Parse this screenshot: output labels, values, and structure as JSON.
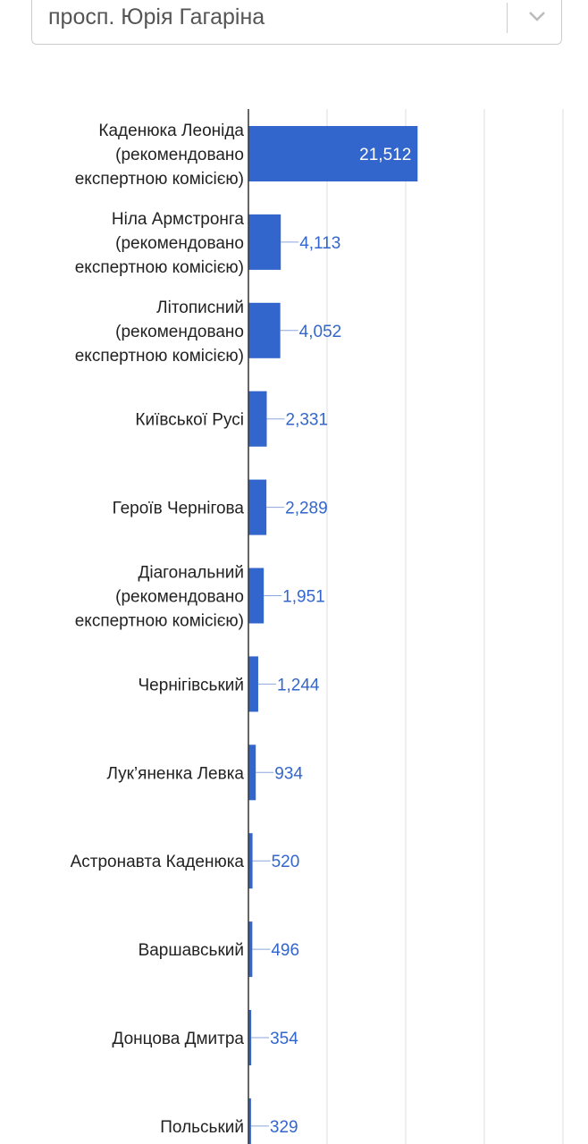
{
  "selector": {
    "value": "просп. Юрія Гагаріна",
    "icon": "chevron-down-icon"
  },
  "chart_data": {
    "type": "bar",
    "orientation": "horizontal",
    "bar_color": "#3366cc",
    "xlim": [
      0,
      40000
    ],
    "grid": true,
    "categories": [
      [
        "Каденюка Леоніда",
        "(рекомендовано",
        "експертною комісією)"
      ],
      [
        "Ніла Армстронга",
        "(рекомендовано",
        "експертною комісією)"
      ],
      [
        "Літописний",
        "(рекомендовано",
        "експертною комісією)"
      ],
      [
        "Київської Русі"
      ],
      [
        "Героїв Чернігова"
      ],
      [
        "Діагональний",
        "(рекомендовано",
        "експертною комісією)"
      ],
      [
        "Чернігівський"
      ],
      [
        "Лук’яненка Левка"
      ],
      [
        "Астронавта Каденюка"
      ],
      [
        "Варшавський"
      ],
      [
        "Донцова Дмитра"
      ],
      [
        "Польський"
      ]
    ],
    "values": [
      21512,
      4113,
      4052,
      2331,
      2289,
      1951,
      1244,
      934,
      520,
      496,
      354,
      329
    ],
    "value_labels": [
      "21,512",
      "4,113",
      "4,052",
      "2,331",
      "2,289",
      "1,951",
      "1,244",
      "934",
      "520",
      "496",
      "354",
      "329"
    ]
  }
}
